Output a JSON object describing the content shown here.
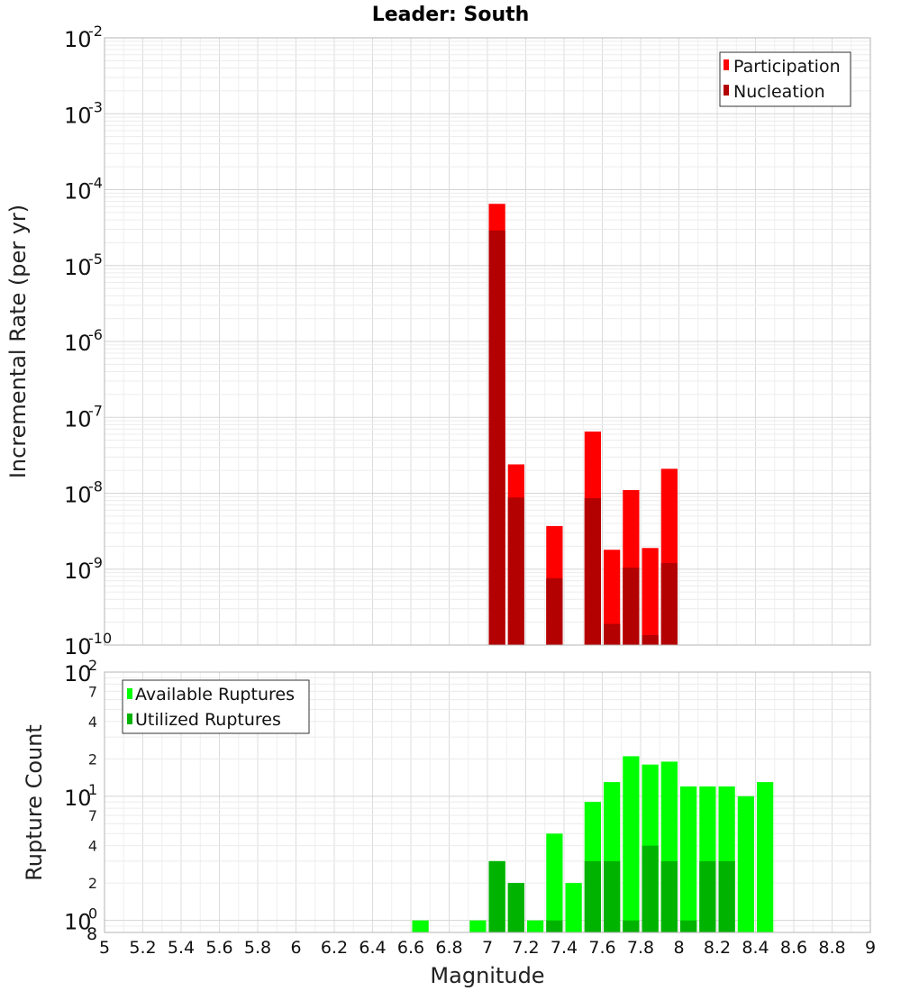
{
  "chart_data": [
    {
      "type": "bar",
      "title": "Leader: South",
      "xlabel": "",
      "ylabel": "Incremental Rate (per yr)",
      "yscale": "log",
      "ylim": [
        1e-10,
        0.01
      ],
      "xlim": [
        5,
        9
      ],
      "bar_width": 0.1,
      "y_decades": [
        -10,
        -9,
        -8,
        -7,
        -6,
        -5,
        -4,
        -3,
        -2
      ],
      "legend": {
        "position": "top-right",
        "entries": [
          "Participation",
          "Nucleation"
        ]
      },
      "series": [
        {
          "name": "Participation",
          "color": "#ff0000",
          "x": [
            7.05,
            7.15,
            7.35,
            7.55,
            7.65,
            7.75,
            7.85,
            7.95
          ],
          "values": [
            6.5e-05,
            2.4e-08,
            3.7e-09,
            6.5e-08,
            1.8e-09,
            1.1e-08,
            1.9e-09,
            2.1e-08
          ]
        },
        {
          "name": "Nucleation",
          "color": "#b30000",
          "x": [
            7.05,
            7.15,
            7.35,
            7.55,
            7.65,
            7.75,
            7.85,
            7.95
          ],
          "values": [
            2.9e-05,
            8.8e-09,
            7.6e-10,
            8.6e-09,
            1.9e-10,
            1.05e-09,
            1.35e-10,
            1.2e-09
          ]
        }
      ]
    },
    {
      "type": "bar",
      "title": "",
      "xlabel": "Magnitude",
      "ylabel": "Rupture Count",
      "yscale": "log",
      "ylim": [
        0.8,
        100
      ],
      "xlim": [
        5,
        9
      ],
      "bar_width": 0.1,
      "x_ticks": [
        "5",
        "5.2",
        "5.4",
        "5.6",
        "5.8",
        "6",
        "6.2",
        "6.4",
        "6.6",
        "6.8",
        "7",
        "7.2",
        "7.4",
        "7.6",
        "7.8",
        "8",
        "8.2",
        "8.4",
        "8.6",
        "8.8",
        "9"
      ],
      "y_decades": [
        0,
        1,
        2
      ],
      "y_minor_ticks": [
        "2",
        "4",
        "7",
        "2",
        "4",
        "7",
        "8"
      ],
      "legend": {
        "position": "top-left",
        "entries": [
          "Available Ruptures",
          "Utilized Ruptures"
        ]
      },
      "series": [
        {
          "name": "Available Ruptures",
          "color": "#00ff00",
          "x": [
            6.65,
            6.95,
            7.05,
            7.15,
            7.25,
            7.35,
            7.45,
            7.55,
            7.65,
            7.75,
            7.85,
            7.95,
            8.05,
            8.15,
            8.25,
            8.35,
            8.45
          ],
          "values": [
            1,
            1,
            3,
            2,
            1,
            5,
            2,
            9,
            13,
            21,
            18,
            19,
            12,
            12,
            12,
            10,
            13
          ]
        },
        {
          "name": "Utilized Ruptures",
          "color": "#00b300",
          "x": [
            7.05,
            7.15,
            7.35,
            7.55,
            7.65,
            7.75,
            7.85,
            7.95,
            8.05,
            8.15,
            8.25
          ],
          "values": [
            3,
            2,
            1,
            3,
            3,
            1,
            4,
            3,
            1,
            3,
            3
          ]
        }
      ]
    }
  ]
}
